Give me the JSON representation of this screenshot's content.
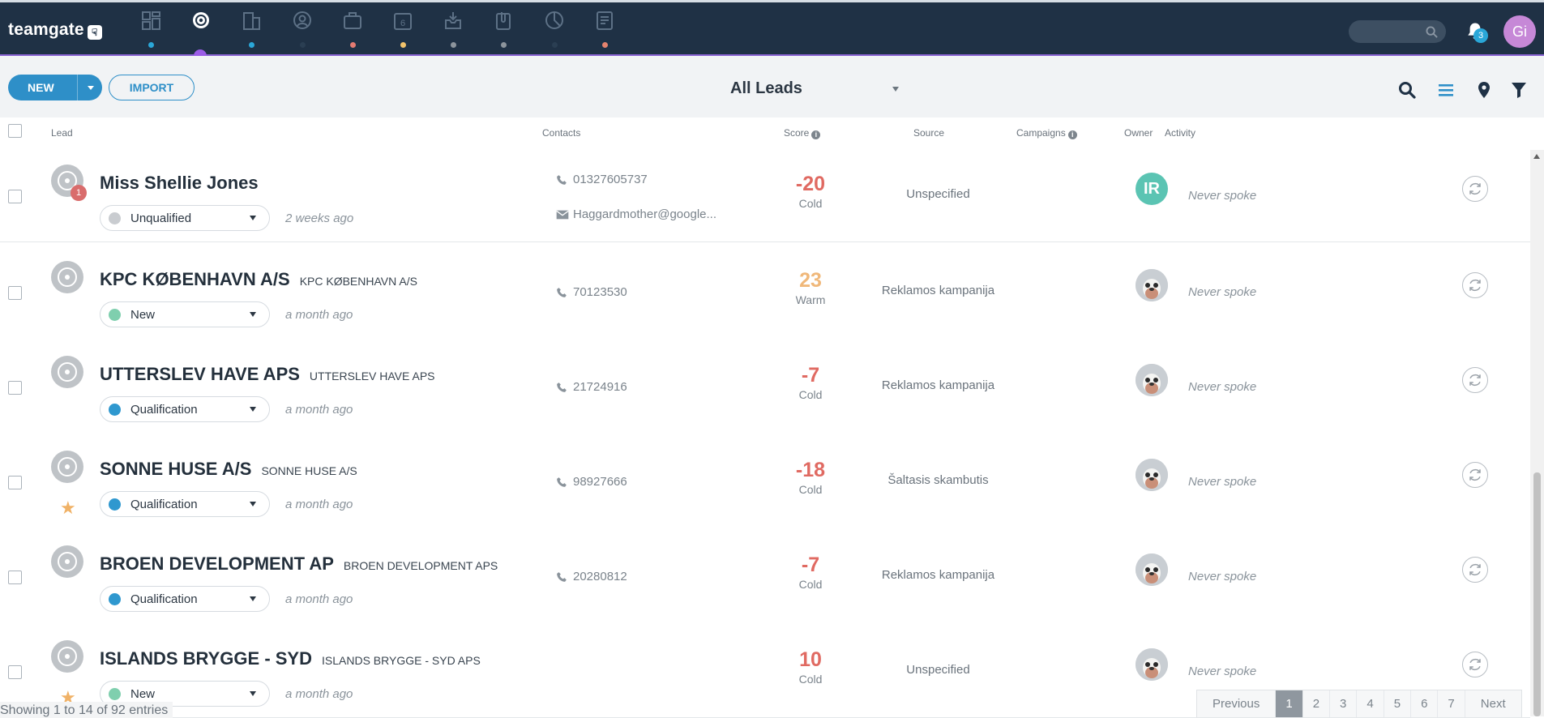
{
  "app": {
    "logo": "teamgate"
  },
  "topnav": {
    "notification_count": "3",
    "user_initials": "Gi",
    "items": [
      {
        "icon": "dashboard-icon",
        "dot": "#2aa7d8"
      },
      {
        "icon": "leads-target-icon",
        "dot": null
      },
      {
        "icon": "companies-building-icon",
        "dot": "#2aa7d8"
      },
      {
        "icon": "contacts-person-icon",
        "dot": "#2a3e52"
      },
      {
        "icon": "deals-briefcase-icon",
        "dot": "#e57b72"
      },
      {
        "icon": "calendar-icon",
        "dot": "#f2c36b"
      },
      {
        "icon": "inbox-icon",
        "dot": "#8c949c"
      },
      {
        "icon": "documents-clip-icon",
        "dot": "#8c949c"
      },
      {
        "icon": "reports-pie-icon",
        "dot": "#2a3e52"
      },
      {
        "icon": "invoices-icon",
        "dot": "#e5836e"
      }
    ]
  },
  "toolbar": {
    "new_label": "NEW",
    "import_label": "IMPORT",
    "view_title": "All Leads"
  },
  "table": {
    "columns": {
      "lead": "Lead",
      "contacts": "Contacts",
      "score": "Score",
      "source": "Source",
      "campaigns": "Campaigns",
      "owner": "Owner",
      "activity": "Activity"
    },
    "rows": [
      {
        "name": "Miss Shellie Jones",
        "company": "",
        "badge": "1",
        "starred": false,
        "status": "Unqualified",
        "status_color": "#c9ccd0",
        "ago": "2 weeks ago",
        "phone": "01327605737",
        "email": "Haggardmother@google...",
        "score": "-20",
        "score_label": "Cold",
        "score_color": "#e06a62",
        "source": "Unspecified",
        "owner_initials": "IR",
        "activity": "Never spoke"
      },
      {
        "name": "KPC KØBENHAVN A/S",
        "company": "KPC KØBENHAVN A/S",
        "badge": "",
        "starred": false,
        "status": "New",
        "status_color": "#7fcfae",
        "ago": "a month ago",
        "phone": "70123530",
        "email": "",
        "score": "23",
        "score_label": "Warm",
        "score_color": "#f0b87a",
        "source": "Reklamos kampanija",
        "owner_initials": "",
        "activity": "Never spoke"
      },
      {
        "name": "UTTERSLEV HAVE APS",
        "company": "UTTERSLEV HAVE APS",
        "badge": "",
        "starred": false,
        "status": "Qualification",
        "status_color": "#2f98cf",
        "ago": "a month ago",
        "phone": "21724916",
        "email": "",
        "score": "-7",
        "score_label": "Cold",
        "score_color": "#e06a62",
        "source": "Reklamos kampanija",
        "owner_initials": "",
        "activity": "Never spoke"
      },
      {
        "name": "SONNE HUSE A/S",
        "company": "SONNE HUSE A/S",
        "badge": "",
        "starred": true,
        "status": "Qualification",
        "status_color": "#2f98cf",
        "ago": "a month ago",
        "phone": "98927666",
        "email": "",
        "score": "-18",
        "score_label": "Cold",
        "score_color": "#e06a62",
        "source": "Šaltasis skambutis",
        "owner_initials": "",
        "activity": "Never spoke"
      },
      {
        "name": "BROEN DEVELOPMENT AP",
        "company": "BROEN DEVELOPMENT APS",
        "badge": "",
        "starred": false,
        "status": "Qualification",
        "status_color": "#2f98cf",
        "ago": "a month ago",
        "phone": "20280812",
        "email": "",
        "score": "-7",
        "score_label": "Cold",
        "score_color": "#e06a62",
        "source": "Reklamos kampanija",
        "owner_initials": "",
        "activity": "Never spoke"
      },
      {
        "name": "ISLANDS BRYGGE - SYD",
        "company": "ISLANDS BRYGGE - SYD APS",
        "badge": "",
        "starred": true,
        "status": "New",
        "status_color": "#7fcfae",
        "ago": "a month ago",
        "phone": "",
        "email": "",
        "score": "10",
        "score_label": "Cold",
        "score_color": "#e06a62",
        "source": "Unspecified",
        "owner_initials": "",
        "activity": "Never spoke"
      }
    ]
  },
  "footer": {
    "entries_text": "Showing 1 to 14 of 92 entries",
    "previous": "Previous",
    "next": "Next",
    "pages": [
      "1",
      "2",
      "3",
      "4",
      "5",
      "6",
      "7"
    ],
    "current_page": "1"
  }
}
